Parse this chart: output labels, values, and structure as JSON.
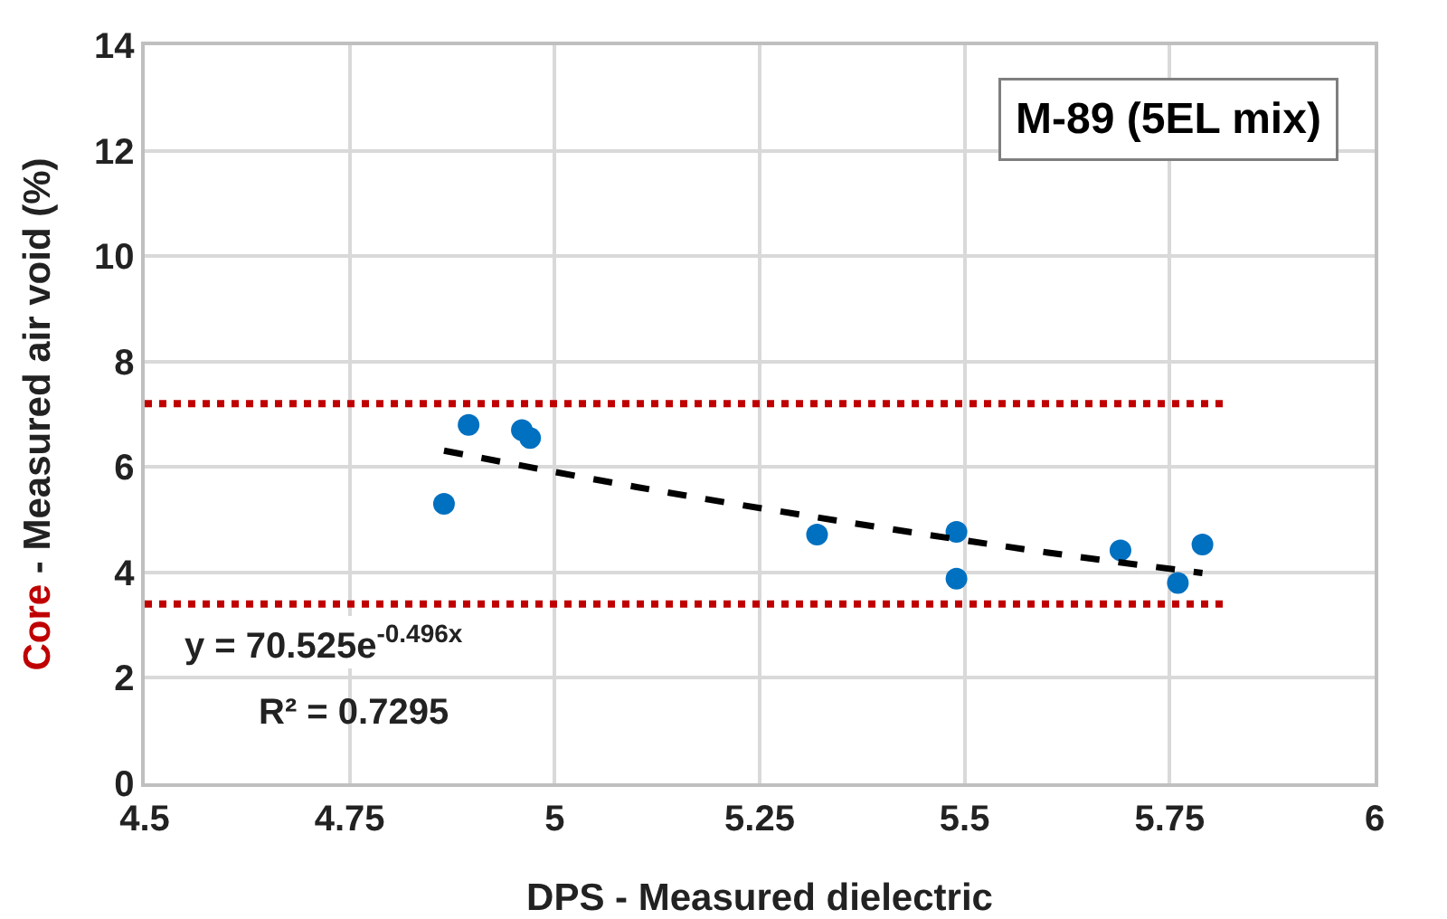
{
  "chart_data": {
    "type": "scatter",
    "xlabel": "DPS - Measured dielectric",
    "ylabel": "Core - Measured air void (%)",
    "xlim": [
      4.5,
      6
    ],
    "xticks": [
      4.5,
      4.75,
      5,
      5.25,
      5.5,
      5.75,
      6
    ],
    "ylim": [
      0,
      14
    ],
    "yticks": [
      0,
      2,
      4,
      6,
      8,
      10,
      12,
      14
    ],
    "grid": true,
    "series": [
      {
        "marker": "circle",
        "color": "#0070c0",
        "x": [
          4.865,
          4.895,
          4.96,
          4.97,
          5.32,
          5.49,
          5.49,
          5.69,
          5.76,
          5.79
        ],
        "values": [
          5.3,
          6.8,
          6.7,
          6.55,
          4.72,
          4.77,
          3.88,
          4.42,
          3.8,
          4.53
        ]
      },
      {
        "type": "line",
        "color": "#000000",
        "line_style": "dashed",
        "x": [
          4.865,
          5.1,
          5.35,
          5.6,
          5.79
        ],
        "values": [
          6.31,
          5.62,
          4.97,
          4.38,
          3.99
        ]
      }
    ],
    "ref_lines": [
      {
        "axis": "y",
        "value": 7.2,
        "color": "#c00000",
        "line_style": "dotted"
      },
      {
        "axis": "y",
        "value": 3.4,
        "color": "#c00000",
        "line_style": "dotted"
      }
    ],
    "annotations": [
      "M-89 (5EL mix)",
      "y = 70.525e$^{-0.496x}$",
      "R² = 0.7295"
    ]
  }
}
